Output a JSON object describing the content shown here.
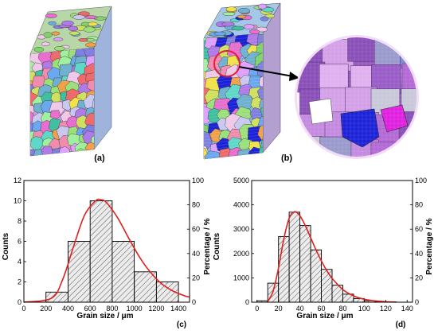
{
  "panel_labels": {
    "a": "(a)",
    "b": "(b)",
    "c": "(c)",
    "d": "(d)"
  },
  "colors": {
    "curve": "#e02020",
    "bar_fill": "#ececec",
    "bar_hatch": "#555555",
    "zoom_circle": "#e0203a",
    "arrow": "#000000"
  },
  "chart_data": [
    {
      "type": "bar",
      "panel": "(c)",
      "xlabel": "Grain size / μm",
      "ylabel": "Counts",
      "y2label": "Percentage / %",
      "xlim": [
        0,
        1500
      ],
      "ylim": [
        0,
        12
      ],
      "y2lim": [
        0,
        100
      ],
      "xticks": [
        0,
        200,
        400,
        600,
        800,
        1000,
        1200,
        1400
      ],
      "yticks": [
        0,
        2,
        4,
        6,
        8,
        10,
        12
      ],
      "y2ticks": [
        0,
        20,
        40,
        60,
        80,
        100
      ],
      "bin_edges": [
        200,
        400,
        600,
        800,
        1000,
        1200,
        1400
      ],
      "counts": [
        1,
        6,
        10,
        6,
        3,
        2
      ],
      "fit_curve": {
        "x": [
          0,
          250,
          350,
          450,
          550,
          650,
          700,
          750,
          850,
          950,
          1050,
          1150,
          1250,
          1350,
          1450,
          1500
        ],
        "y": [
          0,
          0.4,
          2.2,
          5.5,
          8.6,
          10.0,
          10.1,
          9.8,
          8.3,
          6.3,
          4.4,
          2.9,
          1.8,
          1.1,
          0.65,
          0.5
        ]
      }
    },
    {
      "type": "bar",
      "panel": "(d)",
      "xlabel": "Grain size / μm",
      "ylabel": "Counts",
      "y2label": "Percentage / %",
      "xlim": [
        -5,
        145
      ],
      "ylim": [
        0,
        5000
      ],
      "y2lim": [
        0,
        100
      ],
      "xticks": [
        0,
        20,
        40,
        60,
        80,
        100,
        120,
        140
      ],
      "yticks": [
        0,
        1000,
        2000,
        3000,
        4000,
        5000
      ],
      "y2ticks": [
        0,
        20,
        40,
        60,
        80,
        100
      ],
      "bin_edges": [
        0,
        10,
        20,
        30,
        40,
        50,
        60,
        70,
        80,
        90,
        100,
        110,
        120
      ],
      "counts": [
        60,
        780,
        2700,
        3700,
        3150,
        2150,
        1350,
        700,
        330,
        150,
        60,
        30
      ],
      "fit_curve": {
        "x": [
          10,
          15,
          20,
          25,
          30,
          35,
          40,
          45,
          50,
          55,
          60,
          65,
          70,
          80,
          90,
          100,
          110,
          120,
          130
        ],
        "y": [
          30,
          450,
          1400,
          2600,
          3450,
          3720,
          3550,
          3150,
          2650,
          2150,
          1700,
          1300,
          980,
          520,
          260,
          120,
          55,
          20,
          8
        ]
      }
    }
  ]
}
